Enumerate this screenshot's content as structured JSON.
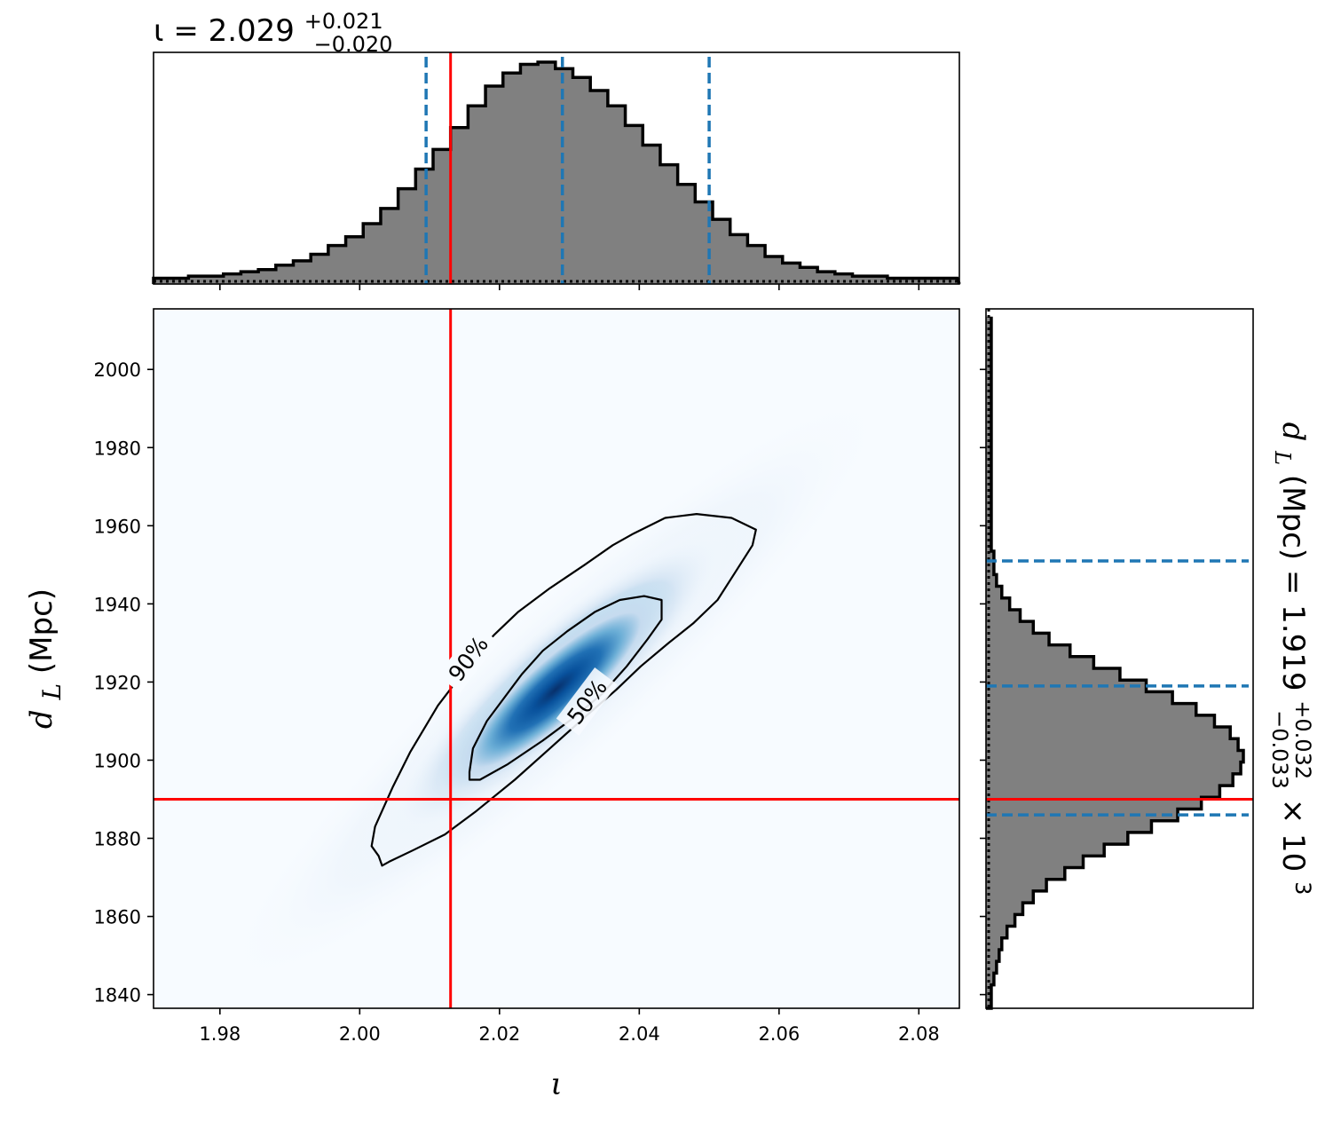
{
  "chart_data": [
    {
      "type": "heatmap",
      "panel": "joint",
      "xlabel": "ι",
      "ylabel_symbol": "d",
      "ylabel_sub": "L",
      "ylabel_unit": "(Mpc)",
      "xlim": [
        1.9705,
        2.0858
      ],
      "ylim": [
        1836.5,
        2015.5
      ],
      "xticks": [
        1.98,
        2.0,
        2.02,
        2.04,
        2.06,
        2.08
      ],
      "xtick_labels": [
        "1.98",
        "2.00",
        "2.02",
        "2.04",
        "2.06",
        "2.08"
      ],
      "yticks": [
        1840,
        1860,
        1880,
        1900,
        1920,
        1940,
        1960,
        1980,
        2000
      ],
      "ytick_labels": [
        "1840",
        "1860",
        "1880",
        "1900",
        "1920",
        "1940",
        "1960",
        "1980",
        "2000"
      ],
      "density": {
        "mean_x": 2.028,
        "mean_y": 1918,
        "std_x": 0.011,
        "std_y": 17.5,
        "correlation": 0.92,
        "colormap": "Blues"
      },
      "contours": [
        {
          "label": "90%",
          "points": [
            [
              2.0027,
              1875.5
            ],
            [
              2.0017,
              1878
            ],
            [
              2.0022,
              1883
            ],
            [
              2.0047,
              1893
            ],
            [
              2.0072,
              1902
            ],
            [
              2.0112,
              1914
            ],
            [
              2.0142,
              1921
            ],
            [
              2.0162,
              1926
            ],
            [
              2.0192,
              1932
            ],
            [
              2.0227,
              1938
            ],
            [
              2.0272,
              1944
            ],
            [
              2.0322,
              1950
            ],
            [
              2.0362,
              1955
            ],
            [
              2.0392,
              1958
            ],
            [
              2.0437,
              1962
            ],
            [
              2.0482,
              1963
            ],
            [
              2.0532,
              1962
            ],
            [
              2.0567,
              1959
            ],
            [
              2.0562,
              1955
            ],
            [
              2.0537,
              1948
            ],
            [
              2.0512,
              1941
            ],
            [
              2.0477,
              1935
            ],
            [
              2.0442,
              1930
            ],
            [
              2.0402,
              1924
            ],
            [
              2.0367,
              1918
            ],
            [
              2.0322,
              1911
            ],
            [
              2.0272,
              1903
            ],
            [
              2.0222,
              1895
            ],
            [
              2.0167,
              1887
            ],
            [
              2.0122,
              1881
            ],
            [
              2.0077,
              1877
            ],
            [
              2.0042,
              1874
            ],
            [
              2.0032,
              1873
            ]
          ]
        },
        {
          "label": "50%",
          "points": [
            [
              2.0157,
              1897
            ],
            [
              2.0162,
              1903
            ],
            [
              2.0182,
              1910
            ],
            [
              2.0207,
              1916
            ],
            [
              2.0232,
              1922
            ],
            [
              2.0262,
              1928
            ],
            [
              2.0297,
              1933
            ],
            [
              2.0337,
              1938
            ],
            [
              2.0372,
              1941
            ],
            [
              2.0407,
              1942
            ],
            [
              2.0432,
              1941
            ],
            [
              2.0432,
              1936
            ],
            [
              2.0412,
              1931
            ],
            [
              2.0382,
              1924
            ],
            [
              2.0347,
              1917
            ],
            [
              2.0307,
              1911
            ],
            [
              2.0262,
              1905
            ],
            [
              2.0212,
              1899
            ],
            [
              2.0172,
              1895
            ],
            [
              2.0157,
              1895
            ]
          ]
        }
      ],
      "contour_labels": [
        "90%",
        "50%"
      ],
      "truth": {
        "x": 2.013,
        "y": 1890,
        "color": "#ff0000"
      }
    },
    {
      "type": "bar",
      "panel": "top-marginal",
      "title_prefix": "ι = 2.029",
      "title_sup": "+0.021",
      "title_sub": "−0.020",
      "bin_edges_start": 1.9705,
      "bin_width": 0.0025,
      "values": [
        0.01,
        0.01,
        0.02,
        0.02,
        0.03,
        0.04,
        0.05,
        0.07,
        0.09,
        0.12,
        0.16,
        0.2,
        0.26,
        0.33,
        0.42,
        0.51,
        0.6,
        0.7,
        0.8,
        0.89,
        0.95,
        0.99,
        1.0,
        0.97,
        0.93,
        0.87,
        0.8,
        0.71,
        0.62,
        0.53,
        0.44,
        0.36,
        0.28,
        0.21,
        0.16,
        0.11,
        0.08,
        0.06,
        0.04,
        0.03,
        0.02,
        0.02,
        0.01,
        0.01,
        0.01,
        0.01
      ],
      "quantiles": [
        2.0095,
        2.029,
        2.05
      ],
      "truth": 2.013,
      "fill": "#808080",
      "quantile_color": "#1f77b4"
    },
    {
      "type": "bar",
      "panel": "right-marginal",
      "title_symbol": "d",
      "title_sub_L": "L",
      "title_rest": " (Mpc) = 1.919",
      "title_sup": "+0.032",
      "title_sub": "−0.033",
      "title_suffix": " × 10",
      "title_exp": "3",
      "bin_edges_start": 1836.5,
      "bin_width": 3.0,
      "values": [
        0.01,
        0.01,
        0.02,
        0.03,
        0.04,
        0.05,
        0.07,
        0.1,
        0.13,
        0.17,
        0.22,
        0.29,
        0.36,
        0.44,
        0.53,
        0.62,
        0.72,
        0.81,
        0.88,
        0.93,
        0.96,
        0.97,
        0.95,
        0.92,
        0.86,
        0.79,
        0.7,
        0.6,
        0.5,
        0.4,
        0.31,
        0.23,
        0.17,
        0.12,
        0.08,
        0.05,
        0.03,
        0.02,
        0.02,
        0.01,
        0.01,
        0.01,
        0.01,
        0.01,
        0.01,
        0.01,
        0.01,
        0.01,
        0.01,
        0.01,
        0.01,
        0.01,
        0.01,
        0.01,
        0.01,
        0.01,
        0.01,
        0.01,
        0.01,
        0.01
      ],
      "quantiles": [
        1886,
        1919,
        1951
      ],
      "truth": 1890,
      "fill": "#808080",
      "quantile_color": "#1f77b4"
    }
  ]
}
